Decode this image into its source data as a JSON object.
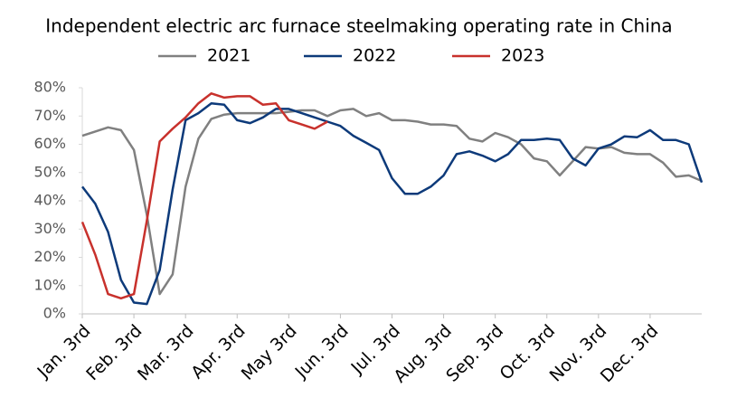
{
  "chart_data": {
    "type": "line",
    "title": "Independent electric arc furnace steelmaking operating rate in China",
    "categories": [
      "Jan. 3rd",
      null,
      null,
      null,
      "Feb. 3rd",
      null,
      null,
      null,
      "Mar. 3rd",
      null,
      null,
      null,
      "Apr. 3rd",
      null,
      null,
      null,
      "May 3rd",
      null,
      null,
      null,
      "Jun. 3rd",
      null,
      null,
      null,
      "Jul. 3rd",
      null,
      null,
      null,
      "Aug. 3rd",
      null,
      null,
      null,
      "Sep. 3rd",
      null,
      null,
      null,
      "Oct. 3rd",
      null,
      null,
      null,
      "Nov. 3rd",
      null,
      null,
      null,
      "Dec. 3rd",
      null,
      null,
      null,
      null
    ],
    "series": [
      {
        "name": "2021",
        "color": "#808080",
        "values": [
          63,
          64.5,
          66,
          65,
          58,
          35,
          7,
          14,
          45,
          62,
          69,
          70.5,
          71,
          71,
          71,
          71,
          71.5,
          72,
          72,
          70,
          72,
          72.5,
          70,
          71,
          68.5,
          68.5,
          68,
          67,
          67,
          66.5,
          62,
          61,
          64,
          62.5,
          60,
          55,
          54,
          49,
          54,
          59,
          58.5,
          59,
          57,
          56.5,
          56.5,
          53.5,
          48.5,
          49,
          47
        ]
      },
      {
        "name": "2022",
        "color": "#0d3a7a",
        "values": [
          45,
          39,
          29,
          12,
          4,
          3.5,
          15.5,
          44,
          68.5,
          71,
          74.5,
          74,
          68.5,
          67.5,
          69.5,
          72.5,
          72.5,
          71,
          69.5,
          68,
          66.5,
          63,
          60.5,
          58,
          48,
          42.5,
          42.5,
          45,
          49,
          56.5,
          57.5,
          56,
          54,
          56.5,
          61.5,
          61.5,
          62,
          61.5,
          55,
          52.5,
          58.5,
          60,
          62.8,
          62.5,
          65,
          61.5,
          61.5,
          60,
          46.5
        ]
      },
      {
        "name": "2023",
        "color": "#c8312c",
        "values": [
          32.5,
          21,
          7,
          5.5,
          7,
          33,
          61,
          65.5,
          69.5,
          74.5,
          78,
          76.5,
          77,
          77,
          74,
          74.5,
          68.5,
          67,
          65.5,
          68,
          null,
          null,
          null,
          null,
          null,
          null,
          null,
          null,
          null,
          null,
          null,
          null,
          null,
          null,
          null,
          null,
          null,
          null,
          null,
          null,
          null,
          null,
          null,
          null,
          null,
          null,
          null,
          null,
          null
        ]
      }
    ],
    "ylim": [
      0,
      80
    ],
    "yticks": [
      {
        "value": 0,
        "label": "0%"
      },
      {
        "value": 10,
        "label": "10%"
      },
      {
        "value": 20,
        "label": "20%"
      },
      {
        "value": 30,
        "label": "30%"
      },
      {
        "value": 40,
        "label": "40%"
      },
      {
        "value": 50,
        "label": "50%"
      },
      {
        "value": 60,
        "label": "60%"
      },
      {
        "value": 70,
        "label": "70%"
      },
      {
        "value": 80,
        "label": "80%"
      }
    ],
    "grid": false
  }
}
